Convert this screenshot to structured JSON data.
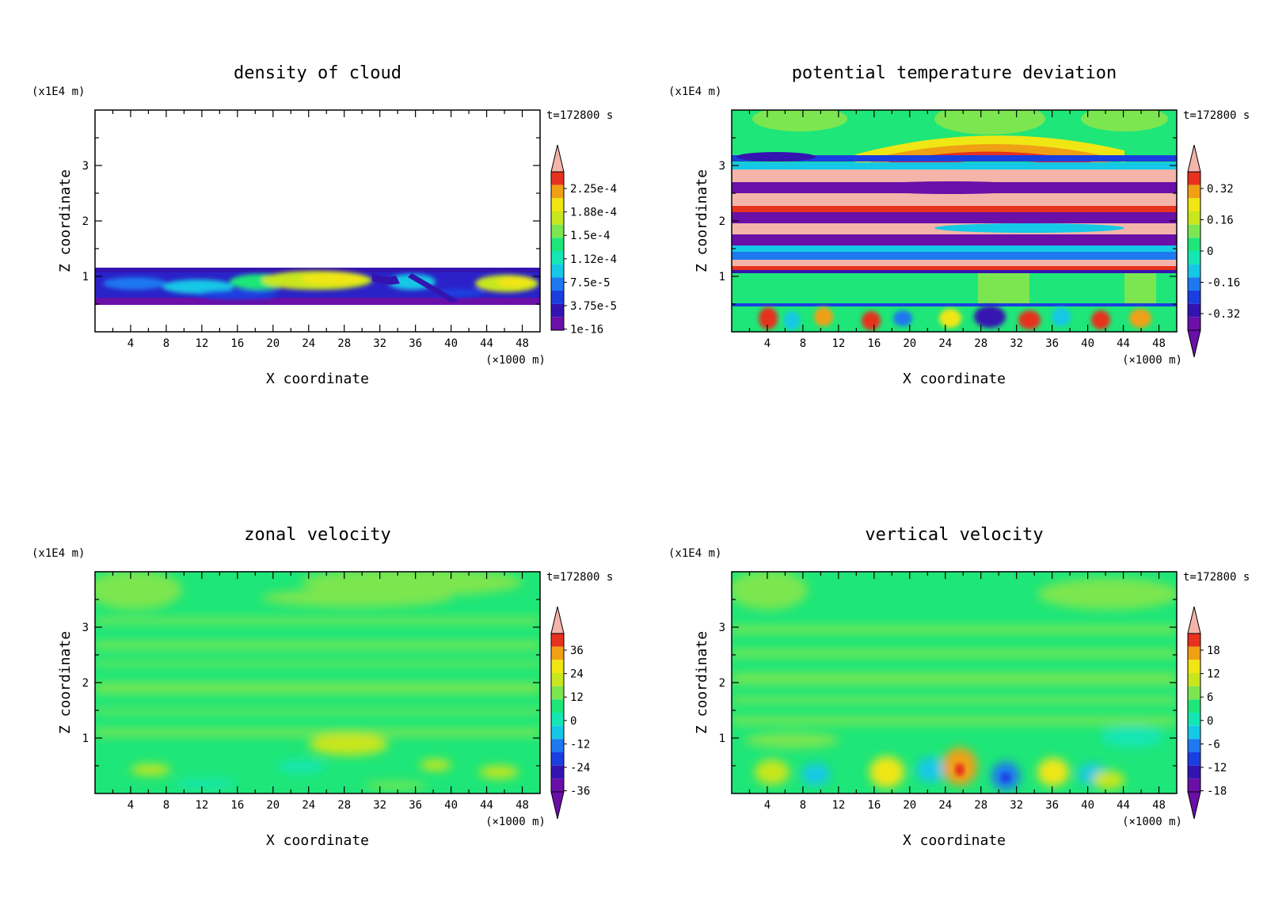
{
  "chart_data": [
    {
      "type": "heatmap",
      "title": "density of cloud",
      "xlabel": "X coordinate",
      "ylabel": "Z coordinate",
      "x_unit": "(×1000 m)",
      "y_unit": "(x1E4 m)",
      "time_label": "t=172800 s",
      "xlim": [
        0,
        50
      ],
      "ylim": [
        0,
        4
      ],
      "x_ticks": [
        "4",
        "8",
        "12",
        "16",
        "20",
        "24",
        "28",
        "32",
        "36",
        "40",
        "44",
        "48"
      ],
      "y_ticks": [
        "1",
        "2",
        "3"
      ],
      "colorbar_labels": [
        "2.25e-4",
        "1.88e-4",
        "1.5e-4",
        "1.12e-4",
        "7.5e-5",
        "3.75e-5",
        "1e-16"
      ],
      "colorbar_arrows": "top"
    },
    {
      "type": "heatmap",
      "title": "potential temperature deviation",
      "xlabel": "X coordinate",
      "ylabel": "Z coordinate",
      "x_unit": "(×1000 m)",
      "y_unit": "(x1E4 m)",
      "time_label": "t=172800 s",
      "xlim": [
        0,
        50
      ],
      "ylim": [
        0,
        4
      ],
      "x_ticks": [
        "4",
        "8",
        "12",
        "16",
        "20",
        "24",
        "28",
        "32",
        "36",
        "40",
        "44",
        "48"
      ],
      "y_ticks": [
        "1",
        "2",
        "3"
      ],
      "colorbar_labels": [
        "0.32",
        "0.16",
        "0",
        "-0.16",
        "-0.32"
      ],
      "colorbar_arrows": "both"
    },
    {
      "type": "heatmap",
      "title": "zonal velocity",
      "xlabel": "X coordinate",
      "ylabel": "Z coordinate",
      "x_unit": "(×1000 m)",
      "y_unit": "(x1E4 m)",
      "time_label": "t=172800 s",
      "xlim": [
        0,
        50
      ],
      "ylim": [
        0,
        4
      ],
      "x_ticks": [
        "4",
        "8",
        "12",
        "16",
        "20",
        "24",
        "28",
        "32",
        "36",
        "40",
        "44",
        "48"
      ],
      "y_ticks": [
        "1",
        "2",
        "3"
      ],
      "colorbar_labels": [
        "36",
        "24",
        "12",
        "0",
        "-12",
        "-24",
        "-36"
      ],
      "colorbar_arrows": "both"
    },
    {
      "type": "heatmap",
      "title": "vertical velocity",
      "xlabel": "X coordinate",
      "ylabel": "Z coordinate",
      "x_unit": "(×1000 m)",
      "y_unit": "(x1E4 m)",
      "time_label": "t=172800 s",
      "xlim": [
        0,
        50
      ],
      "ylim": [
        0,
        4
      ],
      "x_ticks": [
        "4",
        "8",
        "12",
        "16",
        "20",
        "24",
        "28",
        "32",
        "36",
        "40",
        "44",
        "48"
      ],
      "y_ticks": [
        "1",
        "2",
        "3"
      ],
      "colorbar_labels": [
        "18",
        "12",
        "6",
        "0",
        "-6",
        "-12",
        "-18"
      ],
      "colorbar_arrows": "both"
    }
  ],
  "palette": {
    "purple": "#6a0fa8",
    "indigo": "#3414b0",
    "blue": "#1a3fe0",
    "mblue": "#1e78f0",
    "cyan": "#14c8e6",
    "aqua": "#14e6b4",
    "green": "#1ee678",
    "lgreen": "#7ce650",
    "yellowgreen": "#c8e61e",
    "yellow": "#f0e614",
    "orange": "#f0a014",
    "red": "#e6321e",
    "pink": "#f4b4aa"
  }
}
